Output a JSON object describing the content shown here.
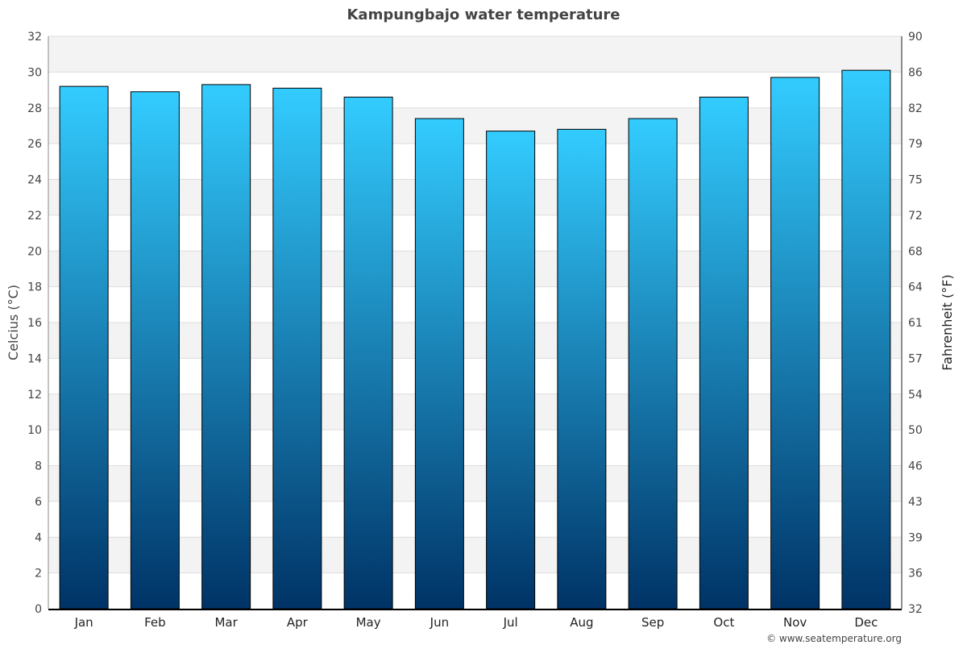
{
  "chart_data": {
    "type": "bar",
    "title": "Kampungbajo water temperature",
    "categories": [
      "Jan",
      "Feb",
      "Mar",
      "Apr",
      "May",
      "Jun",
      "Jul",
      "Aug",
      "Sep",
      "Oct",
      "Nov",
      "Dec"
    ],
    "values": [
      29.2,
      28.9,
      29.3,
      29.1,
      28.6,
      27.4,
      26.7,
      26.8,
      27.4,
      28.6,
      29.7,
      30.1
    ],
    "ylabel": "Celcius (°C)",
    "ylabel_right": "Fahrenheit (°F)",
    "ylim": [
      0,
      32
    ],
    "yticks": [
      0,
      2,
      4,
      6,
      8,
      10,
      12,
      14,
      16,
      18,
      20,
      22,
      24,
      26,
      28,
      30,
      32
    ],
    "yticks_right": [
      "32",
      "36",
      "39",
      "43",
      "46",
      "50",
      "54",
      "57",
      "61",
      "64",
      "68",
      "72",
      "75",
      "79",
      "82",
      "86",
      "90"
    ],
    "grid": true,
    "colors": {
      "bar_top": "#33ccff",
      "bar_bottom": "#003366",
      "band": "#f3f3f3",
      "grid": "#dddddd"
    }
  },
  "credit": "© www.seatemperature.org"
}
